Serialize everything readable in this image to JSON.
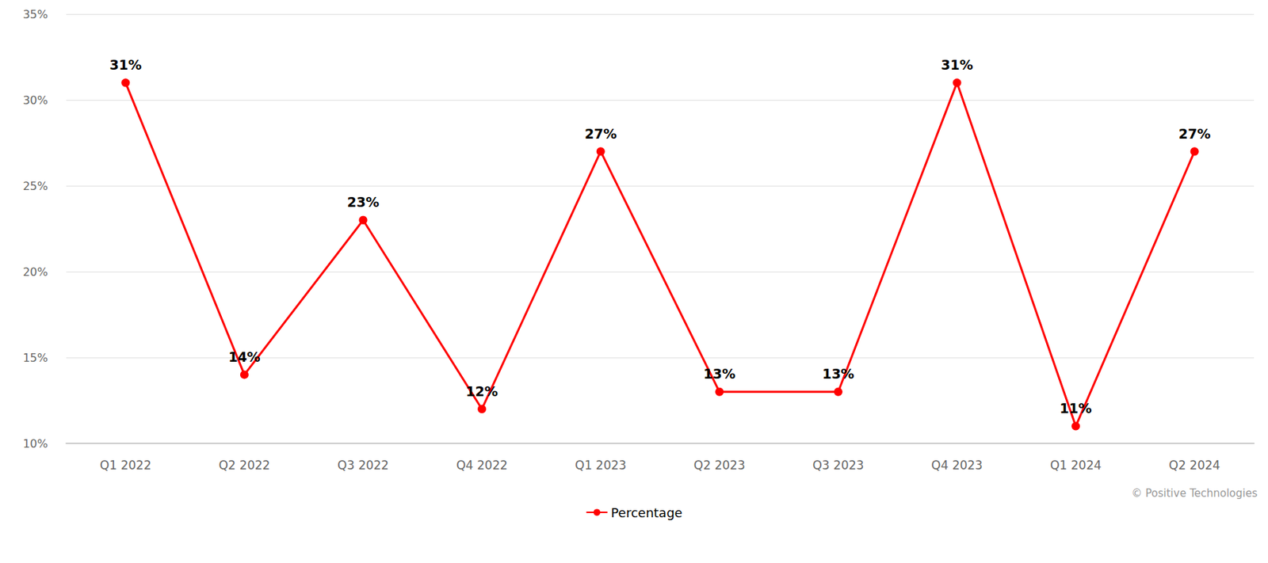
{
  "chart_data": {
    "type": "line",
    "categories": [
      "Q1 2022",
      "Q2 2022",
      "Q3 2022",
      "Q4 2022",
      "Q1 2023",
      "Q2 2023",
      "Q3 2023",
      "Q4 2023",
      "Q1 2024",
      "Q2 2024"
    ],
    "series": [
      {
        "name": "Percentage",
        "color": "#ff0000",
        "values": [
          31,
          14,
          23,
          12,
          27,
          13,
          13,
          31,
          11,
          27
        ],
        "value_labels": [
          "31%",
          "14%",
          "23%",
          "12%",
          "27%",
          "13%",
          "13%",
          "31%",
          "11%",
          "27%"
        ]
      }
    ],
    "ylim": [
      10,
      35
    ],
    "yticks": [
      {
        "value": 10,
        "label": "10%"
      },
      {
        "value": 15,
        "label": "15%"
      },
      {
        "value": 20,
        "label": "20%"
      },
      {
        "value": 25,
        "label": "25%"
      },
      {
        "value": 30,
        "label": "30%"
      },
      {
        "value": 35,
        "label": "35%"
      }
    ],
    "grid": true,
    "legend": "bottom",
    "marker": "circle",
    "data_labels": true,
    "annotations": [
      "© Positive Technologies"
    ]
  }
}
